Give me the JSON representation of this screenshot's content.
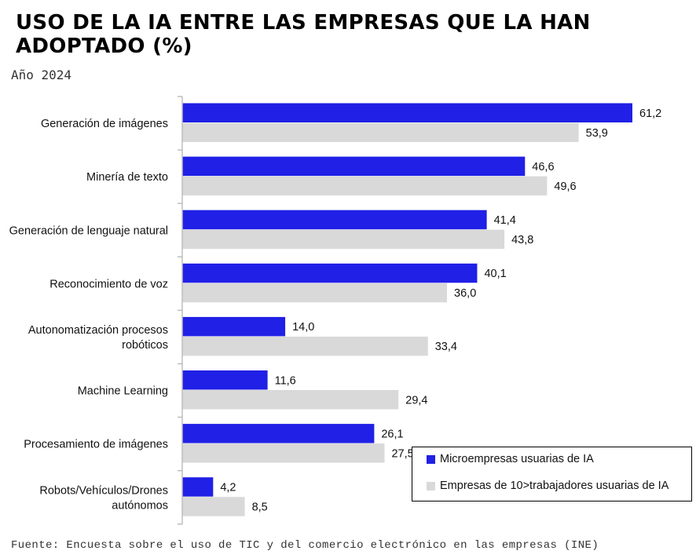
{
  "title": "USO DE LA IA ENTRE LAS EMPRESAS QUE LA HAN ADOPTADO (%)",
  "subtitle": "Año 2024",
  "source": "Fuente: Encuesta sobre el uso de TIC y del comercio electrónico en las empresas (INE)",
  "colors": {
    "micro": "#2020e6",
    "empresas10": "#d9d9d9"
  },
  "chart_data": {
    "type": "bar",
    "orientation": "horizontal",
    "categories": [
      "Generación de imágenes",
      "Minería de texto",
      "Generación de lenguaje natural",
      "Reconocimiento de voz",
      "Autonomatización procesos robóticos",
      "Machine Learning",
      "Procesamiento de imágenes",
      "Robots/Vehículos/Drones autónomos"
    ],
    "category_lines": [
      [
        "Generación de imágenes"
      ],
      [
        "Minería de texto"
      ],
      [
        "Generación de lenguaje natural"
      ],
      [
        "Reconocimiento de voz"
      ],
      [
        "Autonomatización procesos",
        "robóticos"
      ],
      [
        "Machine Learning"
      ],
      [
        "Procesamiento de imágenes"
      ],
      [
        "Robots/Vehículos/Drones",
        "autónomos"
      ]
    ],
    "series": [
      {
        "name": "Microempresas usuarias de IA",
        "values": [
          61.2,
          46.6,
          41.4,
          40.1,
          14.0,
          11.6,
          26.1,
          4.2
        ],
        "labels": [
          "61,2",
          "46,6",
          "41,4",
          "40,1",
          "14,0",
          "11,6",
          "26,1",
          "4,2"
        ]
      },
      {
        "name": "Empresas de 10>trabajadores usuarias de IA",
        "values": [
          53.9,
          49.6,
          43.8,
          36.0,
          33.4,
          29.4,
          27.5,
          8.5
        ],
        "labels": [
          "53,9",
          "49,6",
          "43,8",
          "36,0",
          "33,4",
          "29,4",
          "27,5",
          "8,5"
        ]
      }
    ],
    "xlim": [
      0,
      61.2
    ],
    "legend_position": "bottom-right",
    "grid": false
  }
}
